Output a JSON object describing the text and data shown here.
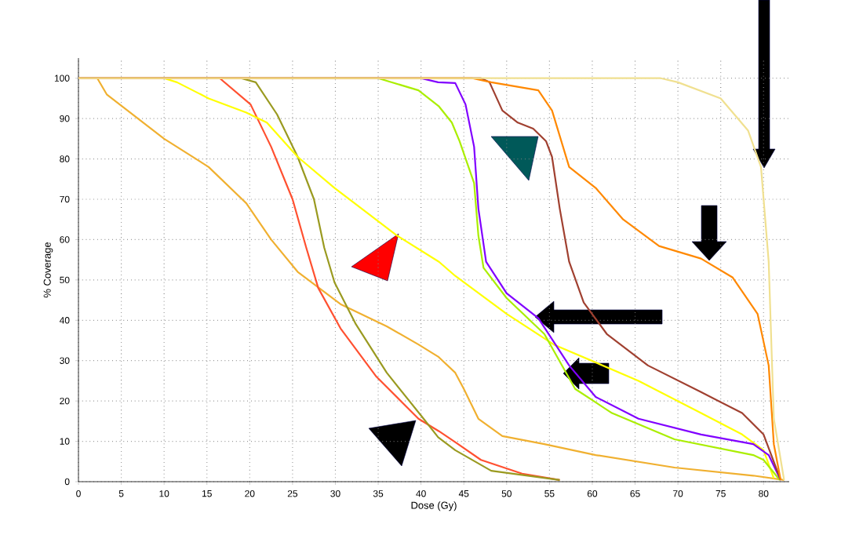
{
  "chart_data": {
    "type": "line",
    "xlabel": "Dose (Gy)",
    "ylabel": "% Coverage",
    "xlim": [
      0,
      83
    ],
    "ylim": [
      0,
      105
    ],
    "xticks": [
      0,
      5,
      10,
      15,
      20,
      25,
      30,
      35,
      40,
      45,
      50,
      55,
      60,
      65,
      70,
      75,
      80
    ],
    "yticks": [
      0,
      10,
      20,
      30,
      40,
      50,
      60,
      70,
      80,
      90,
      100
    ],
    "grid": true,
    "series": [
      {
        "color": "#f0b030",
        "x": [
          0,
          2.2,
          3.3,
          10,
          15.2,
          19.6,
          22.5,
          25.6,
          30.6,
          36,
          39.7,
          42,
          44,
          45,
          46.7,
          49.5,
          54.4,
          60.4,
          69.6,
          78.8,
          82.4
        ],
        "values": [
          100,
          100,
          96,
          85,
          78,
          69,
          60,
          52,
          44,
          38.5,
          34,
          31,
          27,
          23,
          15.6,
          11.3,
          9.3,
          6.6,
          3.5,
          1.5,
          0.4
        ]
      },
      {
        "color": "#ff5030",
        "x": [
          0,
          16.5,
          20.1,
          22.5,
          25,
          26.6,
          28,
          30.6,
          34.8,
          39.7,
          42.1,
          44,
          47,
          51.8,
          56.2
        ],
        "values": [
          100,
          100,
          93.5,
          83,
          70,
          58,
          48,
          38,
          26,
          15.6,
          12.5,
          9.8,
          5.4,
          2,
          0.4
        ]
      },
      {
        "color": "#9a9a20",
        "x": [
          0,
          19,
          20.7,
          23.2,
          25.6,
          27.5,
          28.7,
          29.9,
          32.4,
          36,
          40.3,
          42,
          44,
          48.2,
          56.2
        ],
        "values": [
          100,
          100,
          99,
          91,
          80.5,
          70,
          58,
          49.4,
          39,
          27,
          15.6,
          11,
          7.8,
          2.7,
          0.4
        ]
      },
      {
        "color": "#ffff00",
        "x": [
          0,
          10,
          11.5,
          15.2,
          19.6,
          22,
          25.6,
          29.9,
          37.2,
          42.1,
          44,
          50,
          55.5,
          65.4,
          72.7,
          77.5,
          80,
          81.2
        ],
        "values": [
          100,
          100,
          99,
          95,
          91.5,
          89,
          80.5,
          72.8,
          61,
          54.5,
          51,
          41.6,
          34,
          25,
          17,
          11.7,
          7.8,
          0.8
        ]
      },
      {
        "color": "#aaee00",
        "x": [
          0,
          35,
          39.7,
          42.1,
          43.6,
          44.5,
          46.2,
          46.7,
          47.3,
          50,
          54.4,
          58,
          62.3,
          69.6,
          78.8,
          80,
          81.9
        ],
        "values": [
          100,
          100,
          97,
          93,
          89,
          84.4,
          74,
          61,
          53,
          45.5,
          36.6,
          23,
          17,
          10.5,
          6.6,
          5.4,
          0.4
        ]
      },
      {
        "color": "#8000ff",
        "x": [
          0,
          40,
          42,
          44,
          45.2,
          46.2,
          46.7,
          47.6,
          50,
          53.7,
          57.3,
          60.4,
          65.4,
          72.7,
          78.8,
          80.6,
          82
        ],
        "values": [
          100,
          100,
          99,
          98.8,
          93.5,
          83,
          67.7,
          54.5,
          46.7,
          40.5,
          28.8,
          21,
          15.6,
          11.7,
          9.3,
          6.6,
          0.4
        ]
      },
      {
        "color": "#a04030",
        "x": [
          0,
          47,
          48,
          49.5,
          51.3,
          53.1,
          54.6,
          55.3,
          56.2,
          57.3,
          59,
          61.7,
          66.5,
          72.7,
          77.5,
          80,
          82
        ],
        "values": [
          100,
          100,
          99,
          92,
          89,
          87.5,
          84.4,
          80.5,
          67.7,
          54.5,
          44.4,
          36.6,
          28.8,
          22.2,
          17,
          11.7,
          0.4
        ]
      },
      {
        "color": "#ff8800",
        "x": [
          0,
          46,
          48.2,
          53.7,
          55.3,
          57.3,
          60.4,
          63.6,
          67.8,
          72.7,
          76.4,
          79.3,
          80.6,
          81.2,
          82
        ],
        "values": [
          100,
          100,
          99,
          97,
          92,
          78,
          72.8,
          65,
          58.4,
          55.3,
          50.6,
          41.6,
          28.8,
          9.3,
          0.4
        ]
      },
      {
        "color": "#f0e090",
        "x": [
          0,
          68,
          70,
          75,
          78.2,
          79.7,
          80.6,
          81.2,
          82.4
        ],
        "values": [
          100,
          100,
          99,
          95,
          87,
          78,
          54.5,
          15.6,
          0.4
        ]
      }
    ]
  }
}
